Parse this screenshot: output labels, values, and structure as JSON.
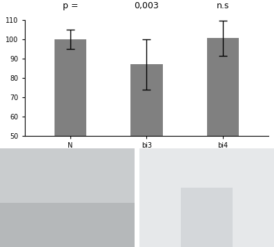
{
  "chart_data": {
    "type": "bar",
    "categories": [
      "N",
      "bi3",
      "bi4"
    ],
    "values": [
      100,
      87,
      100.5
    ],
    "errors": [
      5,
      13,
      9
    ],
    "annotations": [
      "p =",
      "0,003",
      "n.s"
    ],
    "color": "#808080",
    "ylim": [
      50,
      110
    ],
    "yticks": [
      50,
      60,
      70,
      80,
      90,
      100,
      110
    ],
    "grid": false
  }
}
